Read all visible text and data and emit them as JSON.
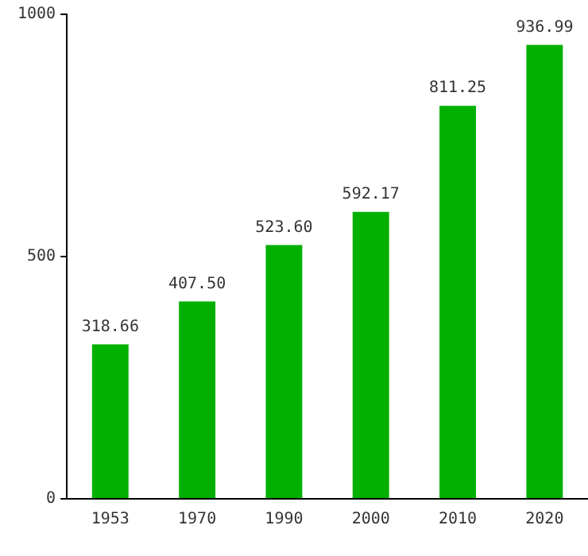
{
  "chart_data": {
    "type": "bar",
    "categories": [
      "1953",
      "1970",
      "1990",
      "2000",
      "2010",
      "2020"
    ],
    "values": [
      318.66,
      407.5,
      523.6,
      592.17,
      811.25,
      936.99
    ],
    "value_labels": [
      "318.66",
      "407.50",
      "523.60",
      "592.17",
      "811.25",
      "936.99"
    ],
    "color": "#00b000",
    "ylim": [
      0,
      1000
    ],
    "yticks": [
      0,
      500,
      1000
    ],
    "grid": false,
    "legend": false
  }
}
